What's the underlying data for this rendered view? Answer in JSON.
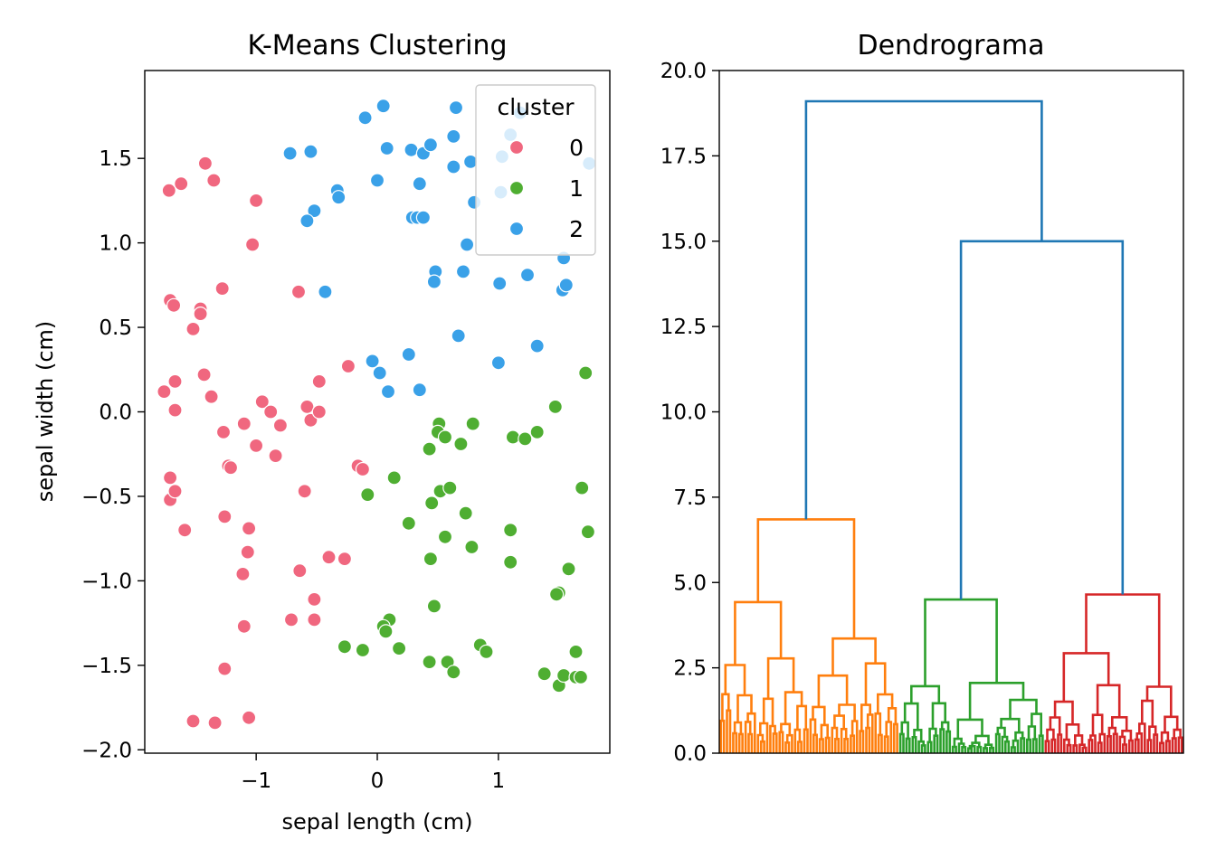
{
  "chart_data": [
    {
      "type": "scatter",
      "title": "K-Means Clustering",
      "xlabel": "sepal length (cm)",
      "ylabel": "sepal width (cm)",
      "xlim": [
        -1.92,
        1.92
      ],
      "ylim": [
        -2.02,
        2.02
      ],
      "xticks": [
        -1,
        0,
        1
      ],
      "xtick_labels": [
        "−1",
        "0",
        "1"
      ],
      "yticks": [
        -2.0,
        -1.5,
        -1.0,
        -0.5,
        0.0,
        0.5,
        1.0,
        1.5
      ],
      "ytick_labels": [
        "−2.0",
        "−1.5",
        "−1.0",
        "−0.5",
        "0.0",
        "0.5",
        "1.0",
        "1.5"
      ],
      "grid": false,
      "legend": {
        "title": "cluster",
        "position": "top-right"
      },
      "series": [
        {
          "name": "0",
          "color": "#f0677f",
          "points": [
            [
              -1.72,
              1.31
            ],
            [
              -1.62,
              1.35
            ],
            [
              -1.42,
              1.47
            ],
            [
              -1.35,
              1.37
            ],
            [
              -1.0,
              1.25
            ],
            [
              -1.03,
              0.99
            ],
            [
              -1.71,
              0.66
            ],
            [
              -1.68,
              0.63
            ],
            [
              -1.52,
              0.49
            ],
            [
              -1.46,
              0.61
            ],
            [
              -1.46,
              0.58
            ],
            [
              -1.28,
              0.73
            ],
            [
              -0.65,
              0.71
            ],
            [
              -0.24,
              0.27
            ],
            [
              -1.76,
              0.12
            ],
            [
              -1.67,
              0.18
            ],
            [
              -1.43,
              0.22
            ],
            [
              -1.37,
              0.09
            ],
            [
              -1.67,
              0.01
            ],
            [
              -0.95,
              0.06
            ],
            [
              -0.88,
              0.0
            ],
            [
              -0.8,
              -0.08
            ],
            [
              -0.58,
              0.03
            ],
            [
              -0.55,
              -0.05
            ],
            [
              -0.48,
              0.18
            ],
            [
              -0.48,
              0.0
            ],
            [
              -1.27,
              -0.12
            ],
            [
              -1.1,
              -0.07
            ],
            [
              -1.23,
              -0.32
            ],
            [
              -1.21,
              -0.33
            ],
            [
              -1.0,
              -0.2
            ],
            [
              -0.84,
              -0.26
            ],
            [
              -0.16,
              -0.32
            ],
            [
              -0.12,
              -0.34
            ],
            [
              -1.71,
              -0.39
            ],
            [
              -1.71,
              -0.52
            ],
            [
              -1.67,
              -0.47
            ],
            [
              -1.59,
              -0.7
            ],
            [
              -1.26,
              -0.62
            ],
            [
              -1.06,
              -0.69
            ],
            [
              -1.07,
              -0.83
            ],
            [
              -0.6,
              -0.47
            ],
            [
              -1.11,
              -0.96
            ],
            [
              -0.64,
              -0.94
            ],
            [
              -0.4,
              -0.86
            ],
            [
              -0.27,
              -0.87
            ],
            [
              -0.52,
              -1.11
            ],
            [
              -0.52,
              -1.23
            ],
            [
              -0.71,
              -1.23
            ],
            [
              -1.1,
              -1.27
            ],
            [
              -1.26,
              -1.52
            ],
            [
              -1.52,
              -1.83
            ],
            [
              -1.34,
              -1.84
            ],
            [
              -1.06,
              -1.81
            ]
          ]
        },
        {
          "name": "1",
          "color": "#4fae32",
          "points": [
            [
              1.72,
              0.23
            ],
            [
              1.47,
              0.03
            ],
            [
              0.51,
              -0.07
            ],
            [
              0.5,
              -0.12
            ],
            [
              0.56,
              -0.15
            ],
            [
              0.43,
              -0.22
            ],
            [
              0.79,
              -0.07
            ],
            [
              0.69,
              -0.19
            ],
            [
              1.12,
              -0.15
            ],
            [
              1.22,
              -0.16
            ],
            [
              1.32,
              -0.12
            ],
            [
              0.14,
              -0.39
            ],
            [
              0.52,
              -0.47
            ],
            [
              0.6,
              -0.45
            ],
            [
              0.45,
              -0.54
            ],
            [
              -0.08,
              -0.49
            ],
            [
              0.73,
              -0.6
            ],
            [
              1.69,
              -0.45
            ],
            [
              0.26,
              -0.66
            ],
            [
              0.56,
              -0.74
            ],
            [
              0.78,
              -0.8
            ],
            [
              1.1,
              -0.7
            ],
            [
              1.74,
              -0.71
            ],
            [
              0.44,
              -0.87
            ],
            [
              1.1,
              -0.89
            ],
            [
              1.58,
              -0.93
            ],
            [
              1.5,
              -1.07
            ],
            [
              1.48,
              -1.08
            ],
            [
              0.47,
              -1.15
            ],
            [
              0.1,
              -1.23
            ],
            [
              0.05,
              -1.27
            ],
            [
              0.07,
              -1.3
            ],
            [
              -0.27,
              -1.39
            ],
            [
              -0.12,
              -1.41
            ],
            [
              0.18,
              -1.4
            ],
            [
              0.43,
              -1.48
            ],
            [
              0.58,
              -1.48
            ],
            [
              0.63,
              -1.54
            ],
            [
              0.85,
              -1.38
            ],
            [
              0.9,
              -1.42
            ],
            [
              1.38,
              -1.55
            ],
            [
              1.5,
              -1.62
            ],
            [
              1.54,
              -1.56
            ],
            [
              1.64,
              -1.57
            ],
            [
              1.68,
              -1.57
            ],
            [
              1.64,
              -1.42
            ]
          ]
        },
        {
          "name": "2",
          "color": "#3aa1e8",
          "points": [
            [
              0.05,
              1.81
            ],
            [
              -0.1,
              1.74
            ],
            [
              0.65,
              1.8
            ],
            [
              0.77,
              1.48
            ],
            [
              1.03,
              1.51
            ],
            [
              1.18,
              1.77
            ],
            [
              1.1,
              1.64
            ],
            [
              1.75,
              1.47
            ],
            [
              -0.72,
              1.53
            ],
            [
              -0.55,
              1.54
            ],
            [
              0.08,
              1.56
            ],
            [
              0.28,
              1.55
            ],
            [
              0.38,
              1.53
            ],
            [
              0.44,
              1.58
            ],
            [
              0.63,
              1.63
            ],
            [
              0.63,
              1.45
            ],
            [
              0.0,
              1.37
            ],
            [
              0.35,
              1.35
            ],
            [
              -0.33,
              1.31
            ],
            [
              -0.32,
              1.27
            ],
            [
              -0.52,
              1.19
            ],
            [
              -0.58,
              1.13
            ],
            [
              0.29,
              1.15
            ],
            [
              0.33,
              1.15
            ],
            [
              0.38,
              1.15
            ],
            [
              1.02,
              1.3
            ],
            [
              0.8,
              1.24
            ],
            [
              0.74,
              0.99
            ],
            [
              1.54,
              0.91
            ],
            [
              0.48,
              0.83
            ],
            [
              0.71,
              0.83
            ],
            [
              0.47,
              0.77
            ],
            [
              1.01,
              0.76
            ],
            [
              1.24,
              0.81
            ],
            [
              1.53,
              0.72
            ],
            [
              1.56,
              0.75
            ],
            [
              -0.43,
              0.71
            ],
            [
              0.67,
              0.45
            ],
            [
              1.32,
              0.39
            ],
            [
              0.26,
              0.34
            ],
            [
              -0.04,
              0.3
            ],
            [
              0.02,
              0.23
            ],
            [
              0.09,
              0.12
            ],
            [
              0.35,
              0.13
            ],
            [
              1.0,
              0.29
            ]
          ]
        }
      ]
    },
    {
      "type": "dendrogram",
      "title": "Dendrograma",
      "xlabel": "",
      "ylabel": "",
      "ylim": [
        0,
        20.0
      ],
      "yticks": [
        0.0,
        2.5,
        5.0,
        7.5,
        10.0,
        12.5,
        15.0,
        17.5,
        20.0
      ],
      "ytick_labels": [
        "0.0",
        "2.5",
        "5.0",
        "7.5",
        "10.0",
        "12.5",
        "15.0",
        "17.5",
        "20.0"
      ],
      "grid": false,
      "colors": {
        "above": "#1f77b4",
        "c1": "#ff7f0e",
        "c2": "#2ca02c",
        "c3": "#d62728"
      },
      "groups": [
        {
          "name": "c1",
          "color": "#ff7f0e",
          "leaf_count": 58,
          "merge_height": 6.85
        },
        {
          "name": "c2",
          "color": "#2ca02c",
          "leaf_count": 47,
          "merge_height": 4.5
        },
        {
          "name": "c3",
          "color": "#d62728",
          "leaf_count": 45,
          "merge_height": 4.65
        }
      ],
      "top_merges": [
        {
          "height": 15.0,
          "joins": [
            "c2",
            "c3"
          ]
        },
        {
          "height": 19.1,
          "joins": [
            "c1",
            "c2+c3"
          ]
        }
      ]
    }
  ]
}
